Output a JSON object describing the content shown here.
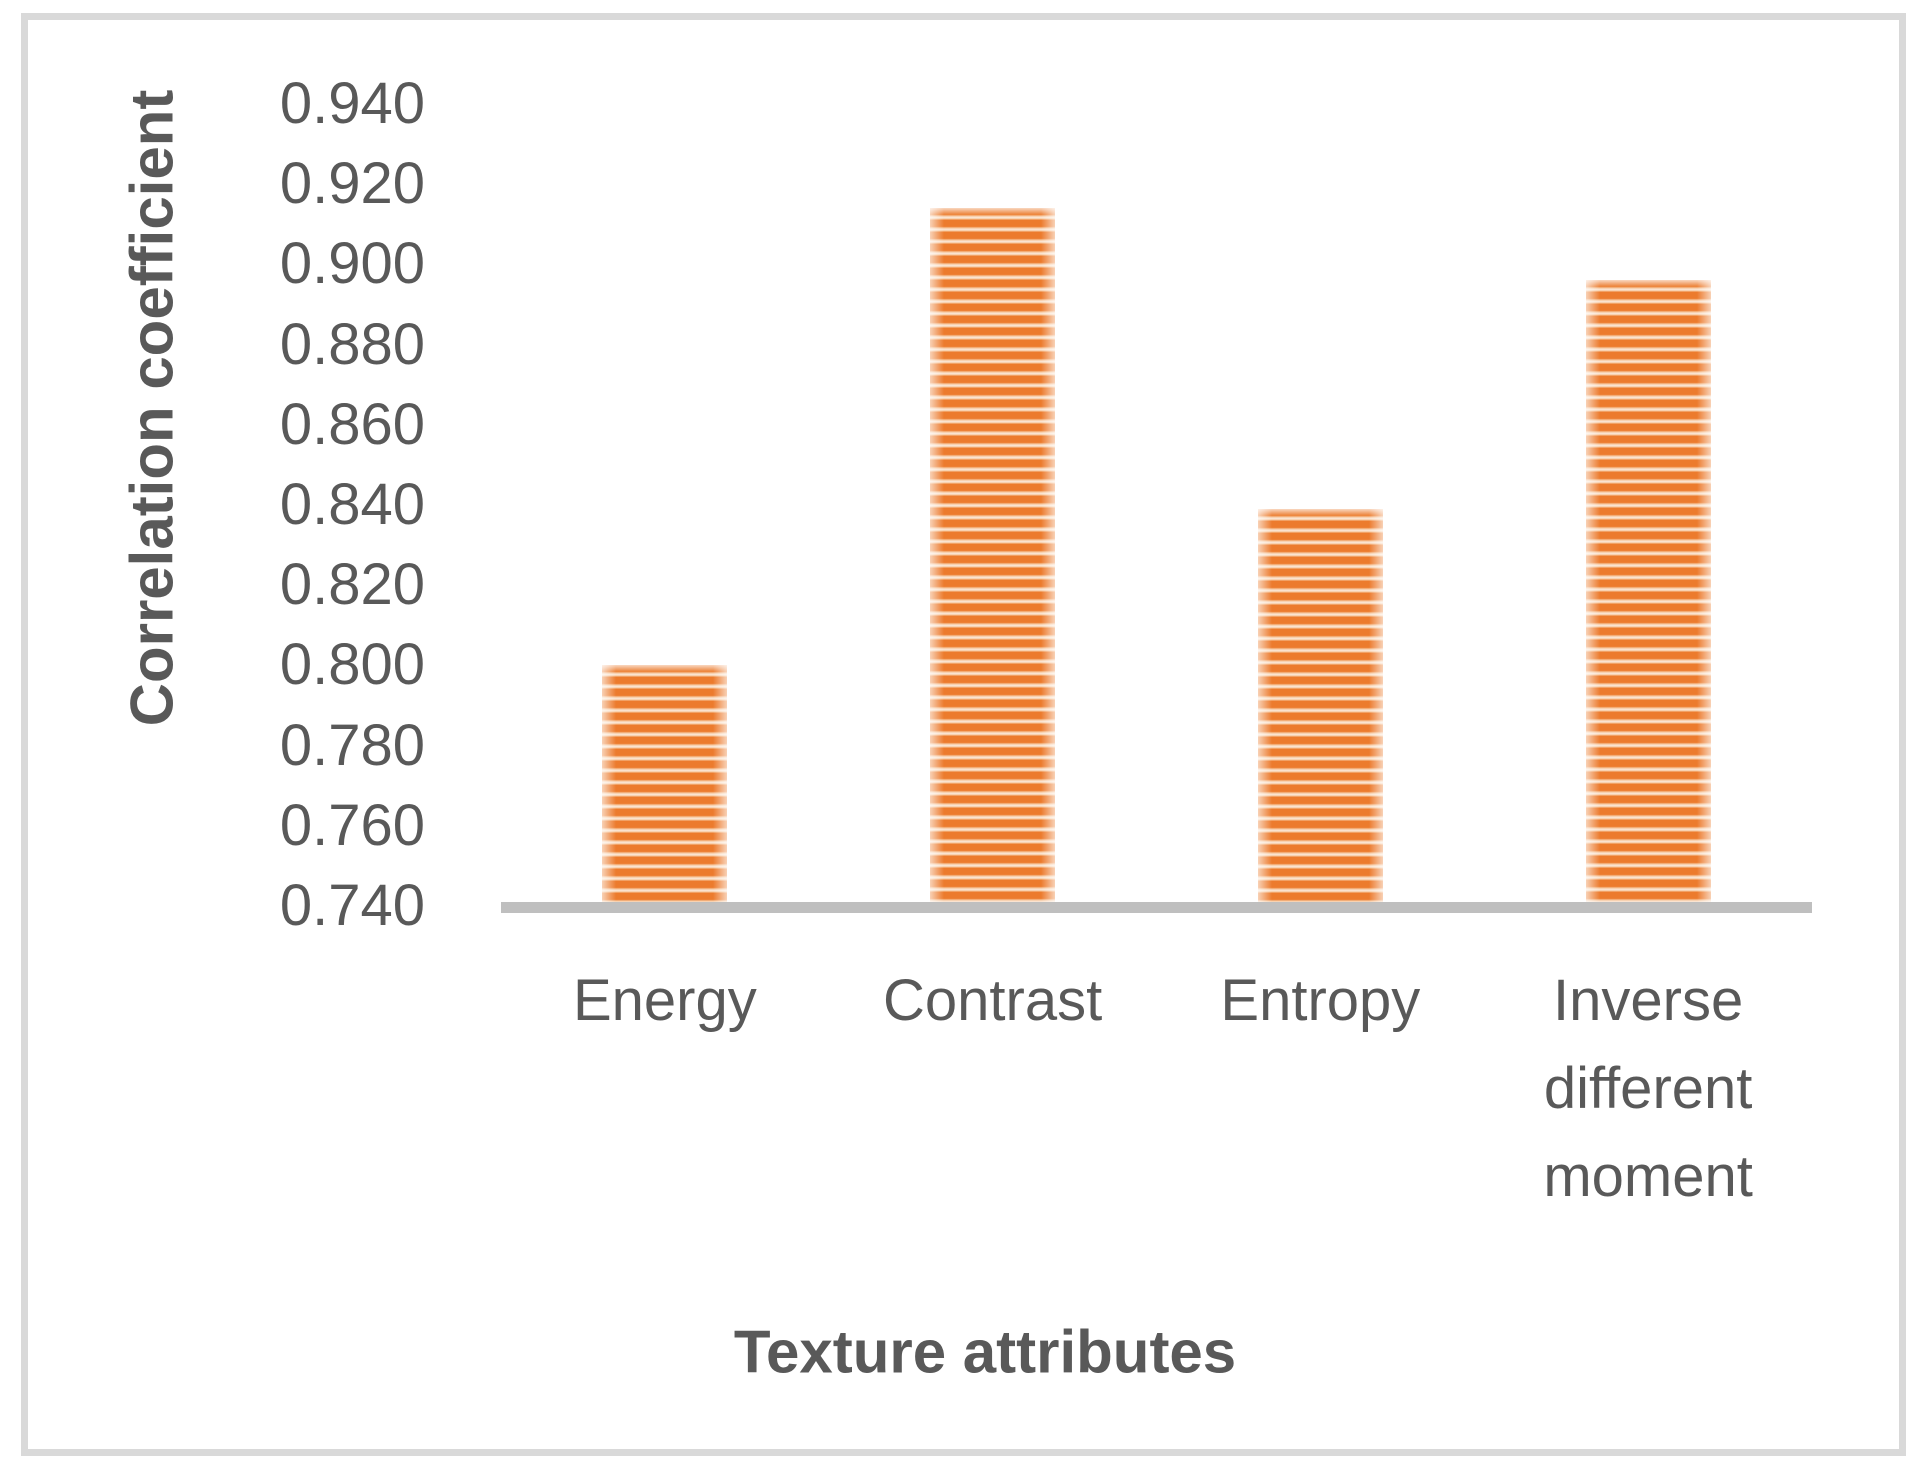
{
  "window": {
    "background": "#FFFFFF",
    "frame_color": "#D9D9D9"
  },
  "chart_data": {
    "type": "bar",
    "categories": [
      "Energy",
      "Contrast",
      "Entropy",
      "Inverse different moment"
    ],
    "values": [
      0.8,
      0.914,
      0.839,
      0.896
    ],
    "title": "",
    "xlabel": "Texture attributes",
    "ylabel": "Correlation coefficient",
    "ylim": [
      0.74,
      0.94
    ],
    "ytick_step": 0.02,
    "ytick_labels": [
      "0.940",
      "0.920",
      "0.900",
      "0.880",
      "0.860",
      "0.840",
      "0.820",
      "0.800",
      "0.780",
      "0.760",
      "0.740"
    ],
    "grid": "off",
    "legend": "none",
    "bar_fill": {
      "pattern": "horizontal-stripes",
      "stripe_color": "#EC7B2D",
      "stripe_bg": "#FBE9DA"
    },
    "axis_line_color": "#BFBFBF",
    "text_color": "#595959"
  }
}
